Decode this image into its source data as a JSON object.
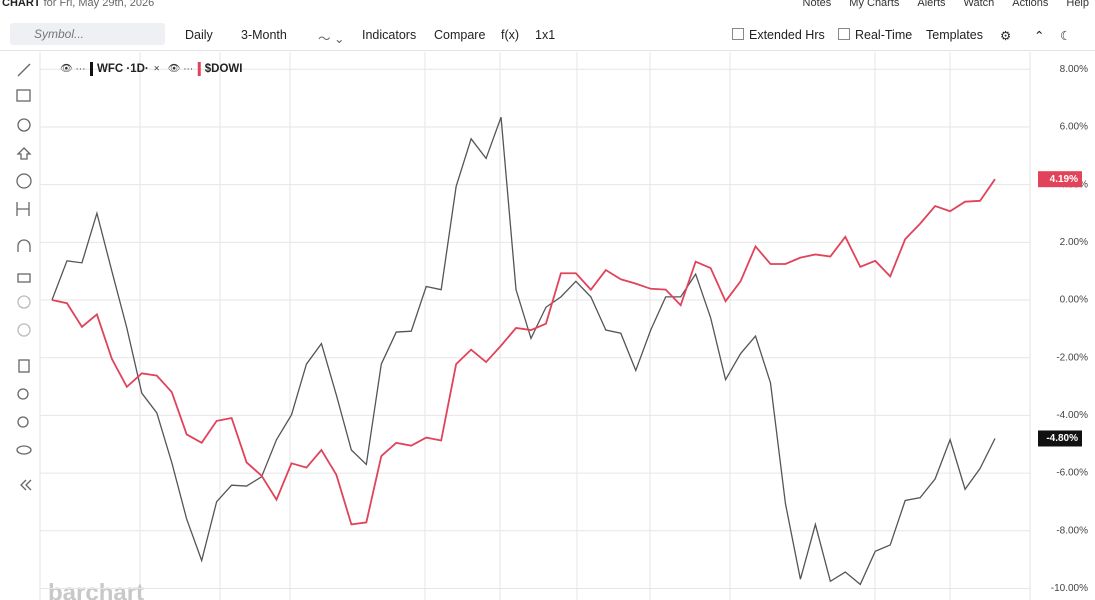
{
  "header": {
    "title": "CHART",
    "subtitle": "for Fri, May 29th, 2026",
    "links": [
      "Notes",
      "My Charts",
      "Alerts",
      "Watch",
      "Actions",
      "Help"
    ]
  },
  "toolbar": {
    "symbol_placeholder": "Symbol...",
    "items": [
      "Daily",
      "3-Month",
      "Indicators",
      "Compare",
      "f(x)",
      "1x1"
    ],
    "checkboxes": [
      "Extended Hrs",
      "Real-Time"
    ],
    "templates": "Templates"
  },
  "watermark": "barchart",
  "chart_data": {
    "type": "line",
    "ylim": [
      -10.4,
      8.6
    ],
    "yticks": [
      {
        "value": 8,
        "label": "8.00%"
      },
      {
        "value": 6,
        "label": "6.00%"
      },
      {
        "value": 4,
        "label": "4.00%"
      },
      {
        "value": 2,
        "label": "2.00%"
      },
      {
        "value": 0,
        "label": "0.00%"
      },
      {
        "value": -2,
        "label": "-2.00%"
      },
      {
        "value": -4,
        "label": "-4.00%"
      },
      {
        "value": -6,
        "label": "-6.00%"
      },
      {
        "value": -8,
        "label": "-8.00%"
      },
      {
        "value": -10,
        "label": "-10.00%"
      }
    ],
    "grid": true,
    "series": [
      {
        "name": "WFC ·1D·",
        "color": "#555555",
        "values": [
          0,
          1.36,
          1.29,
          3.01,
          1.0,
          -0.97,
          -3.23,
          -3.91,
          -5.63,
          -7.6,
          -9.03,
          -6.99,
          -6.42,
          -6.45,
          -6.13,
          -4.84,
          -3.98,
          -2.22,
          -1.51,
          -3.3,
          -5.2,
          -5.7,
          -2.22,
          -1.11,
          -1.08,
          0.47,
          0.36,
          3.94,
          5.59,
          4.91,
          6.34,
          0.36,
          -1.33,
          -0.25,
          0.11,
          0.65,
          0.11,
          -1.04,
          -1.15,
          -2.44,
          -1.04,
          0.11,
          0.11,
          0.9,
          -0.61,
          -2.76,
          -1.86,
          -1.25,
          -2.87,
          -7.06,
          -9.68,
          -7.78,
          -9.75,
          -9.43,
          -9.86,
          -8.71,
          -8.49,
          -6.95,
          -6.85,
          -6.2,
          -4.84,
          -6.56,
          -5.84,
          -4.8
        ],
        "value_labels": [
          null,
          null,
          null,
          null,
          null,
          null,
          null,
          null,
          null,
          null,
          null,
          null,
          null,
          null,
          null,
          null,
          null,
          null,
          null,
          null,
          null,
          null,
          null,
          null,
          null,
          null,
          null,
          null,
          null,
          null,
          null,
          null,
          null,
          null,
          null,
          null,
          null,
          null,
          null,
          null,
          null,
          null,
          null,
          null,
          null,
          null,
          null,
          null,
          null,
          null,
          null,
          null,
          null,
          null,
          null,
          null,
          null,
          null,
          null,
          null,
          null,
          null,
          null,
          "-4.80%"
        ]
      },
      {
        "name": "$DOWI",
        "color": "#e0435a",
        "values": [
          0,
          -0.11,
          -0.93,
          -0.5,
          -2.04,
          -3.01,
          -2.54,
          -2.62,
          -3.19,
          -4.66,
          -4.95,
          -4.19,
          -4.09,
          -5.63,
          -6.09,
          -6.92,
          -5.66,
          -5.81,
          -5.2,
          -6.06,
          -7.78,
          -7.71,
          -5.41,
          -4.95,
          -5.05,
          -4.77,
          -4.87,
          -2.22,
          -1.72,
          -2.15,
          -1.58,
          -0.97,
          -1.04,
          -0.82,
          0.93,
          0.93,
          0.36,
          1.04,
          0.72,
          0.57,
          0.39,
          0.36,
          -0.18,
          1.33,
          1.11,
          -0.04,
          0.65,
          1.86,
          1.25,
          1.25,
          1.47,
          1.58,
          1.51,
          2.19,
          1.15,
          1.36,
          0.82,
          2.11,
          2.65,
          3.26,
          3.08,
          3.41,
          3.44,
          4.19
        ],
        "value_labels": [
          null,
          null,
          null,
          null,
          null,
          null,
          null,
          null,
          null,
          null,
          null,
          null,
          null,
          null,
          null,
          null,
          null,
          null,
          null,
          null,
          null,
          null,
          null,
          null,
          null,
          null,
          null,
          null,
          null,
          null,
          null,
          null,
          null,
          null,
          null,
          null,
          null,
          null,
          null,
          null,
          null,
          null,
          null,
          null,
          null,
          null,
          null,
          null,
          null,
          null,
          null,
          null,
          null,
          null,
          null,
          null,
          null,
          null,
          null,
          null,
          null,
          null,
          null,
          "4.19%"
        ]
      }
    ]
  }
}
